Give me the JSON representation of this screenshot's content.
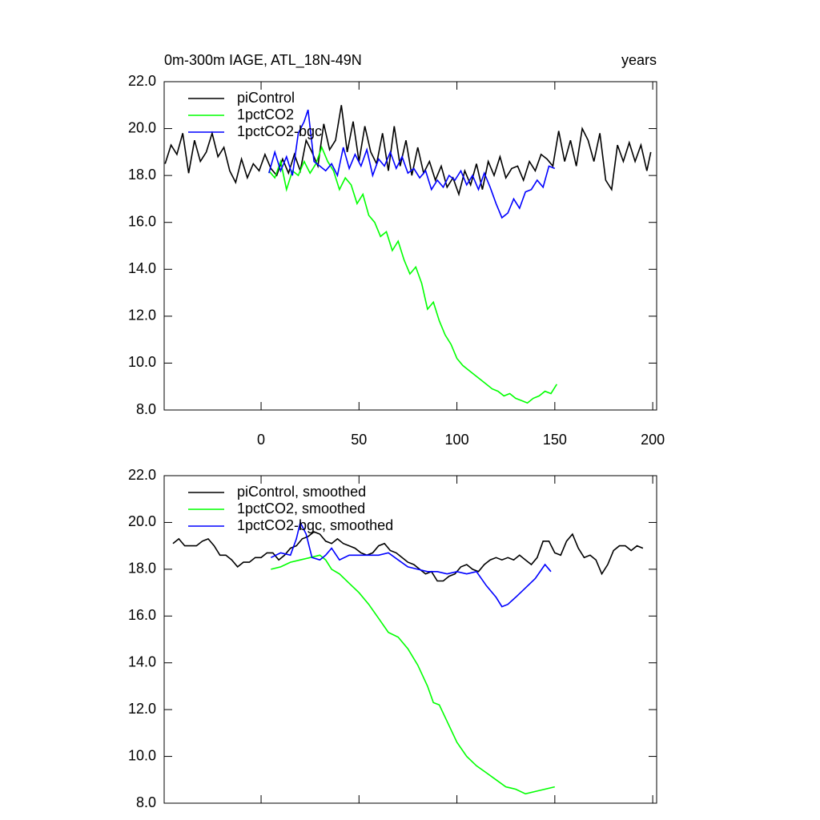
{
  "chart_data": [
    {
      "type": "line",
      "title": "0m-300m IAGE, ATL_18N-49N",
      "units_label": "years",
      "xlim": [
        -49.5,
        202
      ],
      "ylim": [
        8,
        22
      ],
      "xticks": [
        0,
        50,
        100,
        150,
        200
      ],
      "xtick_labels": true,
      "yticks": [
        {
          "value": 8,
          "label": "8.0"
        },
        {
          "value": 10,
          "label": "10.0"
        },
        {
          "value": 12,
          "label": "12.0"
        },
        {
          "value": 14,
          "label": "14.0"
        },
        {
          "value": 16,
          "label": "16.0"
        },
        {
          "value": 18,
          "label": "18.0"
        },
        {
          "value": 20,
          "label": "20.0"
        },
        {
          "value": 22,
          "label": "22.0"
        }
      ],
      "series": [
        {
          "name": "piControl",
          "color": "#000000",
          "x": [
            -49,
            -46,
            -43,
            -40,
            -37,
            -34,
            -31,
            -28,
            -25,
            -22,
            -19,
            -16,
            -13,
            -10,
            -7,
            -4,
            -1,
            2,
            5,
            8,
            11,
            14,
            17,
            20,
            23,
            26,
            29,
            32,
            35,
            38,
            41,
            44,
            47,
            50,
            53,
            56,
            59,
            62,
            65,
            68,
            71,
            74,
            77,
            80,
            83,
            86,
            89,
            92,
            95,
            98,
            101,
            104,
            107,
            110,
            113,
            116,
            119,
            122,
            125,
            128,
            131,
            134,
            137,
            140,
            143,
            146,
            149,
            152,
            155,
            158,
            161,
            164,
            167,
            170,
            173,
            176,
            179,
            182,
            185,
            188,
            191,
            194,
            197,
            199
          ],
          "values": [
            18.5,
            19.3,
            18.9,
            19.8,
            18.1,
            19.5,
            18.6,
            19.0,
            19.8,
            18.8,
            19.2,
            18.2,
            17.7,
            18.7,
            17.9,
            18.5,
            18.2,
            18.9,
            18.3,
            18.0,
            18.7,
            18.1,
            18.9,
            18.2,
            19.5,
            19.0,
            18.4,
            20.2,
            19.1,
            19.5,
            21.0,
            19.0,
            20.3,
            18.6,
            20.1,
            19.0,
            18.5,
            19.8,
            18.2,
            20.1,
            18.4,
            19.5,
            18.0,
            19.2,
            18.1,
            18.6,
            17.8,
            18.4,
            17.5,
            17.9,
            17.2,
            18.2,
            17.6,
            18.5,
            17.4,
            18.6,
            18.0,
            18.8,
            17.9,
            18.3,
            18.4,
            17.8,
            18.6,
            18.2,
            18.9,
            18.7,
            18.4,
            19.9,
            18.6,
            19.5,
            18.4,
            20.0,
            19.5,
            18.6,
            19.8,
            17.8,
            17.4,
            19.3,
            18.6,
            19.4,
            18.6,
            19.3,
            18.2,
            19.0
          ]
        },
        {
          "name": "1pctCO2",
          "color": "#00ff00",
          "x": [
            4,
            7,
            10,
            13,
            16,
            19,
            22,
            25,
            28,
            31,
            34,
            37,
            40,
            43,
            46,
            49,
            52,
            55,
            58,
            61,
            64,
            67,
            70,
            73,
            76,
            79,
            82,
            85,
            88,
            91,
            94,
            97,
            100,
            103,
            106,
            109,
            112,
            115,
            118,
            121,
            124,
            127,
            130,
            133,
            136,
            139,
            142,
            145,
            148,
            151
          ],
          "values": [
            18.2,
            17.9,
            18.6,
            17.4,
            18.2,
            18.0,
            18.6,
            18.1,
            18.5,
            19.2,
            18.6,
            18.2,
            17.4,
            17.9,
            17.6,
            16.8,
            17.2,
            16.3,
            16.0,
            15.4,
            15.6,
            14.8,
            15.2,
            14.4,
            13.8,
            14.1,
            13.4,
            12.3,
            12.6,
            11.8,
            11.2,
            10.8,
            10.2,
            9.9,
            9.7,
            9.5,
            9.3,
            9.1,
            8.9,
            8.8,
            8.6,
            8.7,
            8.5,
            8.4,
            8.3,
            8.5,
            8.6,
            8.8,
            8.7,
            9.1
          ]
        },
        {
          "name": "1pctCO2-bgc",
          "color": "#0000ff",
          "x": [
            4,
            7,
            10,
            13,
            16,
            19,
            22,
            24,
            27,
            30,
            33,
            36,
            39,
            42,
            45,
            48,
            51,
            54,
            57,
            60,
            63,
            66,
            69,
            72,
            75,
            78,
            81,
            84,
            87,
            90,
            93,
            96,
            99,
            102,
            105,
            108,
            111,
            114,
            117,
            120,
            123,
            126,
            129,
            132,
            135,
            138,
            141,
            144,
            147,
            150
          ],
          "values": [
            18.1,
            19.0,
            18.2,
            18.8,
            18.0,
            19.8,
            20.3,
            20.8,
            18.6,
            18.4,
            18.2,
            18.5,
            18.0,
            19.2,
            18.3,
            18.9,
            18.4,
            19.1,
            18.0,
            18.7,
            18.4,
            19.0,
            18.3,
            18.8,
            18.1,
            18.3,
            17.9,
            18.2,
            17.4,
            17.8,
            17.5,
            18.0,
            17.8,
            18.2,
            17.6,
            18.0,
            17.4,
            18.1,
            17.5,
            16.8,
            16.2,
            16.4,
            17.0,
            16.6,
            17.3,
            17.4,
            17.8,
            17.5,
            18.4,
            18.3
          ]
        }
      ]
    },
    {
      "type": "line",
      "xlim": [
        -49.5,
        202
      ],
      "ylim": [
        8,
        22
      ],
      "xticks": [
        0,
        50,
        100,
        150,
        200
      ],
      "xtick_labels": false,
      "yticks": [
        {
          "value": 8,
          "label": "8.0"
        },
        {
          "value": 10,
          "label": "10.0"
        },
        {
          "value": 12,
          "label": "12.0"
        },
        {
          "value": 14,
          "label": "14.0"
        },
        {
          "value": 16,
          "label": "16.0"
        },
        {
          "value": 18,
          "label": "18.0"
        },
        {
          "value": 20,
          "label": "20.0"
        },
        {
          "value": 22,
          "label": "22.0"
        }
      ],
      "series": [
        {
          "name": "piControl, smoothed",
          "color": "#000000",
          "x": [
            -45,
            -42,
            -39,
            -36,
            -33,
            -30,
            -27,
            -24,
            -21,
            -18,
            -15,
            -12,
            -9,
            -6,
            -3,
            0,
            3,
            6,
            9,
            12,
            15,
            18,
            21,
            24,
            27,
            30,
            33,
            36,
            39,
            42,
            45,
            48,
            51,
            54,
            57,
            60,
            63,
            66,
            69,
            72,
            75,
            78,
            81,
            84,
            87,
            90,
            93,
            96,
            99,
            102,
            105,
            108,
            111,
            114,
            117,
            120,
            123,
            126,
            129,
            132,
            135,
            138,
            141,
            144,
            147,
            150,
            153,
            156,
            159,
            162,
            165,
            168,
            171,
            174,
            177,
            180,
            183,
            186,
            189,
            192,
            195
          ],
          "values": [
            19.1,
            19.3,
            19.0,
            19.0,
            19.0,
            19.2,
            19.3,
            19.0,
            18.6,
            18.6,
            18.4,
            18.1,
            18.3,
            18.3,
            18.5,
            18.5,
            18.7,
            18.7,
            18.4,
            18.6,
            18.9,
            19.0,
            19.3,
            19.4,
            19.6,
            19.5,
            19.2,
            19.1,
            19.3,
            19.1,
            19.0,
            18.9,
            18.7,
            18.6,
            18.7,
            19.0,
            19.1,
            18.8,
            18.7,
            18.5,
            18.3,
            18.2,
            18.0,
            17.8,
            17.9,
            17.5,
            17.5,
            17.7,
            17.8,
            18.1,
            18.2,
            18.0,
            17.9,
            18.2,
            18.4,
            18.5,
            18.4,
            18.5,
            18.4,
            18.6,
            18.4,
            18.2,
            18.5,
            19.2,
            19.2,
            18.7,
            18.6,
            19.2,
            19.5,
            18.9,
            18.5,
            18.6,
            18.4,
            17.8,
            18.2,
            18.8,
            19.0,
            19.0,
            18.8,
            19.0,
            18.9
          ]
        },
        {
          "name": "1pctCO2, smoothed",
          "color": "#00ff00",
          "x": [
            5,
            10,
            15,
            20,
            25,
            30,
            33,
            36,
            40,
            45,
            50,
            55,
            60,
            65,
            70,
            75,
            80,
            85,
            88,
            91,
            95,
            100,
            105,
            110,
            115,
            120,
            125,
            130,
            135,
            140,
            145,
            150
          ],
          "values": [
            18.0,
            18.1,
            18.3,
            18.4,
            18.5,
            18.6,
            18.4,
            18.0,
            17.8,
            17.4,
            17.0,
            16.5,
            15.9,
            15.3,
            15.1,
            14.6,
            13.9,
            13.0,
            12.3,
            12.2,
            11.5,
            10.6,
            10.0,
            9.6,
            9.3,
            9.0,
            8.7,
            8.6,
            8.4,
            8.5,
            8.6,
            8.7
          ]
        },
        {
          "name": "1pctCO2-bgc, smoothed",
          "color": "#0000ff",
          "x": [
            5,
            10,
            15,
            18,
            20,
            23,
            26,
            30,
            33,
            36,
            40,
            45,
            50,
            55,
            60,
            65,
            70,
            75,
            80,
            85,
            90,
            95,
            100,
            105,
            110,
            115,
            120,
            123,
            126,
            130,
            135,
            140,
            145,
            148
          ],
          "values": [
            18.5,
            18.7,
            18.6,
            19.3,
            20.0,
            19.5,
            18.5,
            18.4,
            18.6,
            18.9,
            18.4,
            18.6,
            18.6,
            18.6,
            18.6,
            18.7,
            18.4,
            18.1,
            18.0,
            17.9,
            17.9,
            17.8,
            17.9,
            17.8,
            17.9,
            17.3,
            16.8,
            16.4,
            16.5,
            16.8,
            17.2,
            17.6,
            18.2,
            17.9
          ]
        }
      ]
    }
  ]
}
